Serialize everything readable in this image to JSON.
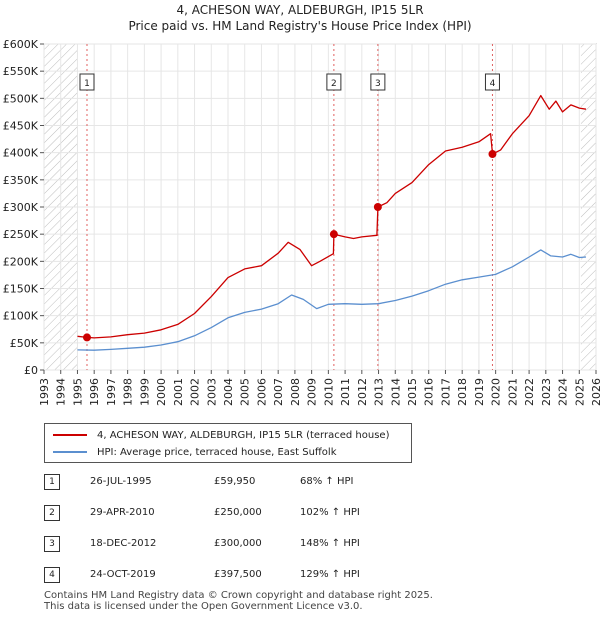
{
  "header": {
    "title": "4, ACHESON WAY, ALDEBURGH, IP15 5LR",
    "subtitle": "Price paid vs. HM Land Registry's House Price Index (HPI)"
  },
  "chart_data": {
    "type": "line",
    "title": "4, ACHESON WAY, ALDEBURGH, IP15 5LR",
    "subtitle": "Price paid vs. HM Land Registry's House Price Index (HPI)",
    "xlim": [
      1993,
      2026
    ],
    "ylim": [
      0,
      600000
    ],
    "y_ticks": [
      0,
      50000,
      100000,
      150000,
      200000,
      250000,
      300000,
      350000,
      400000,
      450000,
      500000,
      550000,
      600000
    ],
    "y_tick_labels": [
      "£0",
      "£50K",
      "£100K",
      "£150K",
      "£200K",
      "£250K",
      "£300K",
      "£350K",
      "£400K",
      "£450K",
      "£500K",
      "£550K",
      "£600K"
    ],
    "x_ticks": [
      "1993",
      "1994",
      "1995",
      "1996",
      "1997",
      "1998",
      "1999",
      "2000",
      "2001",
      "2002",
      "2003",
      "2004",
      "2005",
      "2006",
      "2007",
      "2008",
      "2009",
      "2010",
      "2011",
      "2012",
      "2013",
      "2014",
      "2015",
      "2016",
      "2017",
      "2018",
      "2019",
      "2020",
      "2021",
      "2022",
      "2023",
      "2024",
      "2025",
      "2026"
    ],
    "hatched_ranges": [
      [
        1993,
        1995.0
      ],
      [
        2025.1,
        2026
      ]
    ],
    "series": [
      {
        "name": "4, ACHESON WAY, ALDEBURGH, IP15 5LR (terraced house)",
        "color": "#cc0000",
        "points": [
          [
            1995.0,
            62000
          ],
          [
            1995.57,
            59950
          ],
          [
            1996.0,
            59000
          ],
          [
            1997.0,
            61000
          ],
          [
            1998.0,
            65000
          ],
          [
            1999.0,
            68000
          ],
          [
            2000.0,
            74000
          ],
          [
            2001.0,
            84000
          ],
          [
            2002.0,
            104000
          ],
          [
            2003.0,
            135000
          ],
          [
            2004.0,
            170000
          ],
          [
            2005.0,
            186000
          ],
          [
            2006.0,
            192000
          ],
          [
            2007.0,
            215000
          ],
          [
            2007.6,
            235000
          ],
          [
            2008.3,
            222000
          ],
          [
            2009.0,
            192000
          ],
          [
            2009.5,
            200000
          ],
          [
            2010.3,
            214000
          ],
          [
            2010.33,
            250000
          ],
          [
            2011.0,
            245000
          ],
          [
            2011.5,
            242000
          ],
          [
            2012.0,
            245000
          ],
          [
            2012.9,
            248000
          ],
          [
            2012.96,
            300000
          ],
          [
            2013.5,
            308000
          ],
          [
            2014.0,
            325000
          ],
          [
            2015.0,
            345000
          ],
          [
            2016.0,
            378000
          ],
          [
            2017.0,
            403000
          ],
          [
            2018.0,
            410000
          ],
          [
            2019.0,
            420000
          ],
          [
            2019.7,
            435000
          ],
          [
            2019.81,
            397500
          ],
          [
            2020.3,
            405000
          ],
          [
            2021.0,
            435000
          ],
          [
            2022.0,
            468000
          ],
          [
            2022.7,
            505000
          ],
          [
            2023.2,
            480000
          ],
          [
            2023.6,
            495000
          ],
          [
            2024.0,
            475000
          ],
          [
            2024.5,
            488000
          ],
          [
            2025.0,
            482000
          ],
          [
            2025.4,
            480000
          ]
        ]
      },
      {
        "name": "HPI: Average price, terraced house, East Suffolk",
        "color": "#5b8fcf",
        "points": [
          [
            1995.0,
            37000
          ],
          [
            1996.0,
            36500
          ],
          [
            1997.0,
            38000
          ],
          [
            1998.0,
            40000
          ],
          [
            1999.0,
            42000
          ],
          [
            2000.0,
            46000
          ],
          [
            2001.0,
            52000
          ],
          [
            2002.0,
            63000
          ],
          [
            2003.0,
            78000
          ],
          [
            2004.0,
            96000
          ],
          [
            2005.0,
            106000
          ],
          [
            2006.0,
            112000
          ],
          [
            2007.0,
            122000
          ],
          [
            2007.8,
            138000
          ],
          [
            2008.5,
            130000
          ],
          [
            2009.3,
            113000
          ],
          [
            2010.0,
            121000
          ],
          [
            2011.0,
            122000
          ],
          [
            2012.0,
            121000
          ],
          [
            2013.0,
            122000
          ],
          [
            2014.0,
            128000
          ],
          [
            2015.0,
            136000
          ],
          [
            2016.0,
            146000
          ],
          [
            2017.0,
            158000
          ],
          [
            2018.0,
            166000
          ],
          [
            2019.0,
            171000
          ],
          [
            2020.0,
            176000
          ],
          [
            2021.0,
            190000
          ],
          [
            2022.0,
            208000
          ],
          [
            2022.7,
            221000
          ],
          [
            2023.3,
            210000
          ],
          [
            2024.0,
            208000
          ],
          [
            2024.5,
            213000
          ],
          [
            2025.0,
            207000
          ],
          [
            2025.4,
            208000
          ]
        ]
      }
    ],
    "sales": [
      {
        "num": "1",
        "x": 1995.57,
        "value": 59950
      },
      {
        "num": "2",
        "x": 2010.33,
        "value": 250000
      },
      {
        "num": "3",
        "x": 2012.96,
        "value": 300000
      },
      {
        "num": "4",
        "x": 2019.81,
        "value": 397500
      }
    ]
  },
  "legend": {
    "property_label": "4, ACHESON WAY, ALDEBURGH, IP15 5LR (terraced house)",
    "hpi_label": "HPI: Average price, terraced house, East Suffolk"
  },
  "sales_table": [
    {
      "num": "1",
      "date": "26-JUL-1995",
      "price": "£59,950",
      "hpi": "68% ↑ HPI"
    },
    {
      "num": "2",
      "date": "29-APR-2010",
      "price": "£250,000",
      "hpi": "102% ↑ HPI"
    },
    {
      "num": "3",
      "date": "18-DEC-2012",
      "price": "£300,000",
      "hpi": "148% ↑ HPI"
    },
    {
      "num": "4",
      "date": "24-OCT-2019",
      "price": "£397,500",
      "hpi": "129% ↑ HPI"
    }
  ],
  "footer": {
    "line1": "Contains HM Land Registry data © Crown copyright and database right 2025.",
    "line2": "This data is licensed under the Open Government Licence v3.0."
  }
}
